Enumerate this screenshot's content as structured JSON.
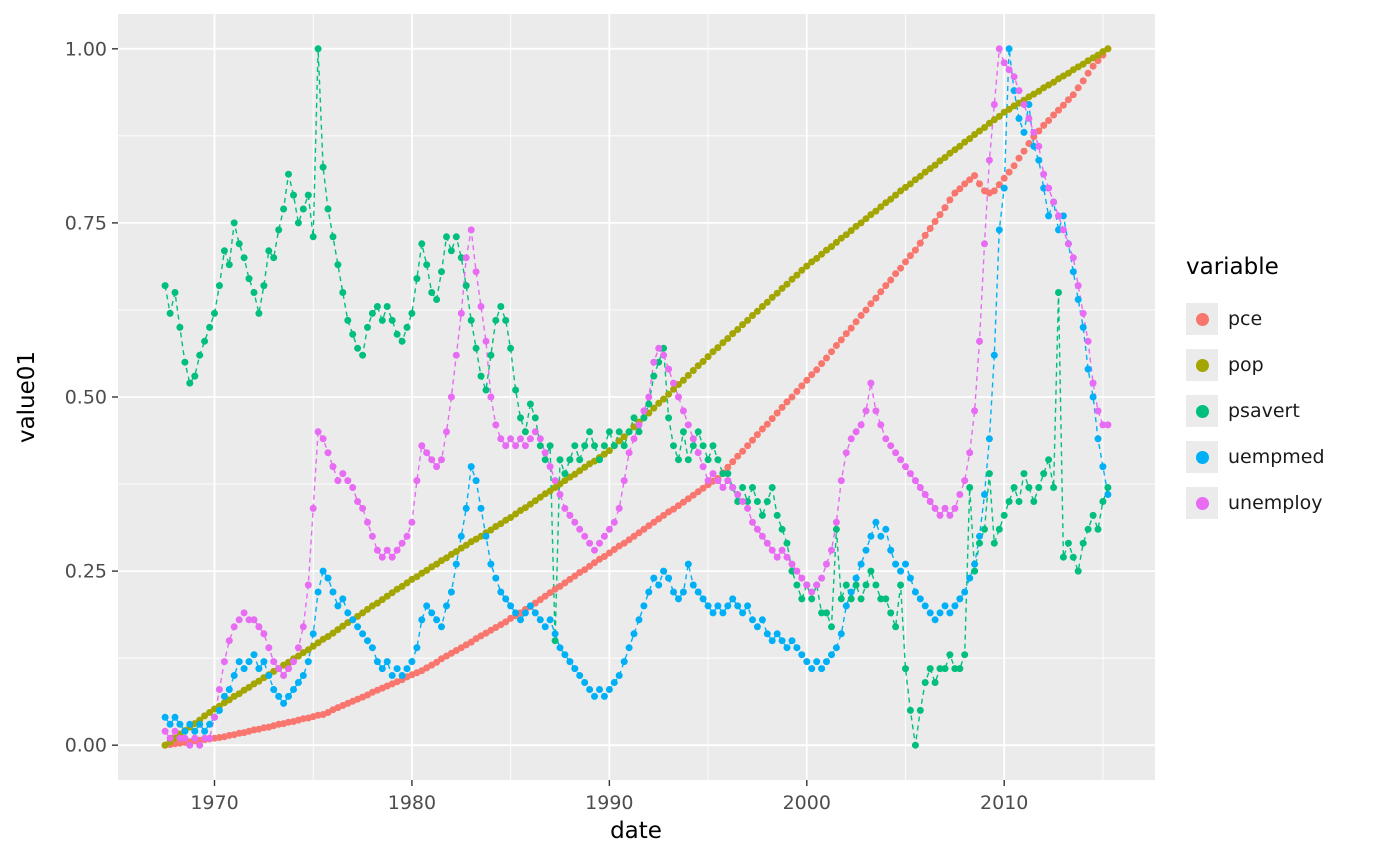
{
  "chart_data": {
    "type": "scatter",
    "title": "",
    "xlabel": "date",
    "ylabel": "value01",
    "x_axis": {
      "ticks": [
        1970,
        1980,
        1990,
        2000,
        2010
      ],
      "tick_labels": [
        "1970",
        "1980",
        "1990",
        "2000",
        "2010"
      ],
      "data_range": [
        1967.5,
        2015.25
      ],
      "expansion": 0.05
    },
    "y_axis": {
      "ticks": [
        0,
        0.25,
        0.5,
        0.75,
        1.0
      ],
      "tick_labels": [
        "0.00",
        "0.25",
        "0.50",
        "0.75",
        "1.00"
      ],
      "range": [
        0,
        1
      ]
    },
    "panel": {
      "background": "#EBEBEB",
      "grid_color": "#FFFFFF"
    },
    "legend": {
      "title": "variable",
      "position": "right",
      "key_fill": "#EBEBEB"
    },
    "x_start": 1967.5,
    "x_step": 0.25,
    "n_points": 192,
    "series": [
      {
        "name": "pce",
        "color": "#F8766D",
        "values": [
          0.0,
          0.001,
          0.002,
          0.003,
          0.004,
          0.005,
          0.006,
          0.007,
          0.008,
          0.009,
          0.01,
          0.011,
          0.012,
          0.014,
          0.015,
          0.017,
          0.018,
          0.02,
          0.022,
          0.023,
          0.025,
          0.026,
          0.028,
          0.03,
          0.031,
          0.033,
          0.034,
          0.036,
          0.038,
          0.039,
          0.041,
          0.043,
          0.044,
          0.047,
          0.051,
          0.054,
          0.057,
          0.06,
          0.063,
          0.066,
          0.069,
          0.072,
          0.076,
          0.079,
          0.082,
          0.085,
          0.088,
          0.091,
          0.094,
          0.098,
          0.101,
          0.104,
          0.107,
          0.111,
          0.115,
          0.119,
          0.124,
          0.128,
          0.132,
          0.136,
          0.14,
          0.144,
          0.148,
          0.153,
          0.157,
          0.161,
          0.165,
          0.169,
          0.173,
          0.177,
          0.182,
          0.186,
          0.19,
          0.195,
          0.199,
          0.204,
          0.209,
          0.214,
          0.219,
          0.224,
          0.228,
          0.233,
          0.238,
          0.243,
          0.248,
          0.252,
          0.257,
          0.262,
          0.267,
          0.271,
          0.276,
          0.281,
          0.286,
          0.29,
          0.295,
          0.3,
          0.305,
          0.31,
          0.315,
          0.32,
          0.325,
          0.33,
          0.335,
          0.339,
          0.344,
          0.349,
          0.354,
          0.359,
          0.364,
          0.369,
          0.374,
          0.379,
          0.383,
          0.391,
          0.399,
          0.407,
          0.415,
          0.422,
          0.43,
          0.438,
          0.446,
          0.454,
          0.461,
          0.469,
          0.477,
          0.485,
          0.493,
          0.5,
          0.508,
          0.516,
          0.524,
          0.532,
          0.539,
          0.548,
          0.556,
          0.565,
          0.574,
          0.582,
          0.591,
          0.599,
          0.608,
          0.617,
          0.625,
          0.634,
          0.642,
          0.651,
          0.66,
          0.668,
          0.677,
          0.685,
          0.694,
          0.703,
          0.711,
          0.721,
          0.732,
          0.742,
          0.752,
          0.762,
          0.772,
          0.783,
          0.793,
          0.799,
          0.806,
          0.812,
          0.818,
          0.806,
          0.796,
          0.793,
          0.796,
          0.805,
          0.814,
          0.823,
          0.832,
          0.843,
          0.853,
          0.864,
          0.874,
          0.882,
          0.89,
          0.897,
          0.905,
          0.912,
          0.919,
          0.927,
          0.934,
          0.944,
          0.954,
          0.965,
          0.975,
          0.983,
          0.991,
          1.0
        ]
      },
      {
        "name": "pop",
        "color": "#A3A500",
        "values": [
          0.0,
          0.005,
          0.01,
          0.016,
          0.021,
          0.026,
          0.031,
          0.036,
          0.042,
          0.047,
          0.052,
          0.056,
          0.061,
          0.065,
          0.07,
          0.074,
          0.079,
          0.083,
          0.088,
          0.092,
          0.097,
          0.101,
          0.106,
          0.11,
          0.115,
          0.119,
          0.124,
          0.128,
          0.133,
          0.137,
          0.142,
          0.147,
          0.152,
          0.156,
          0.161,
          0.166,
          0.171,
          0.176,
          0.18,
          0.185,
          0.19,
          0.195,
          0.2,
          0.204,
          0.209,
          0.214,
          0.219,
          0.224,
          0.228,
          0.233,
          0.238,
          0.242,
          0.247,
          0.251,
          0.256,
          0.26,
          0.265,
          0.269,
          0.274,
          0.278,
          0.283,
          0.287,
          0.292,
          0.296,
          0.3,
          0.305,
          0.309,
          0.314,
          0.318,
          0.323,
          0.327,
          0.332,
          0.337,
          0.341,
          0.346,
          0.351,
          0.356,
          0.361,
          0.365,
          0.37,
          0.375,
          0.38,
          0.385,
          0.389,
          0.394,
          0.399,
          0.404,
          0.408,
          0.413,
          0.418,
          0.423,
          0.43,
          0.437,
          0.443,
          0.45,
          0.457,
          0.464,
          0.47,
          0.477,
          0.484,
          0.491,
          0.497,
          0.504,
          0.511,
          0.518,
          0.524,
          0.531,
          0.538,
          0.545,
          0.551,
          0.558,
          0.565,
          0.571,
          0.578,
          0.584,
          0.591,
          0.597,
          0.604,
          0.61,
          0.617,
          0.623,
          0.63,
          0.636,
          0.643,
          0.649,
          0.656,
          0.662,
          0.669,
          0.675,
          0.682,
          0.688,
          0.694,
          0.699,
          0.705,
          0.711,
          0.716,
          0.722,
          0.728,
          0.733,
          0.739,
          0.745,
          0.75,
          0.756,
          0.762,
          0.767,
          0.773,
          0.779,
          0.784,
          0.79,
          0.796,
          0.801,
          0.806,
          0.812,
          0.817,
          0.823,
          0.828,
          0.833,
          0.839,
          0.844,
          0.85,
          0.855,
          0.86,
          0.866,
          0.871,
          0.877,
          0.882,
          0.887,
          0.893,
          0.898,
          0.903,
          0.909,
          0.913,
          0.918,
          0.922,
          0.926,
          0.931,
          0.935,
          0.939,
          0.944,
          0.948,
          0.952,
          0.957,
          0.961,
          0.965,
          0.97,
          0.974,
          0.978,
          0.983,
          0.987,
          0.991,
          0.996,
          1.0
        ]
      },
      {
        "name": "psavert",
        "color": "#00BF7D",
        "values": [
          0.66,
          0.62,
          0.65,
          0.6,
          0.55,
          0.52,
          0.53,
          0.56,
          0.58,
          0.6,
          0.62,
          0.66,
          0.71,
          0.69,
          0.75,
          0.72,
          0.7,
          0.67,
          0.65,
          0.62,
          0.66,
          0.71,
          0.7,
          0.74,
          0.77,
          0.82,
          0.79,
          0.75,
          0.77,
          0.79,
          0.73,
          1.0,
          0.83,
          0.77,
          0.73,
          0.69,
          0.65,
          0.61,
          0.59,
          0.57,
          0.56,
          0.6,
          0.62,
          0.63,
          0.61,
          0.63,
          0.61,
          0.59,
          0.58,
          0.6,
          0.62,
          0.67,
          0.72,
          0.69,
          0.65,
          0.64,
          0.68,
          0.73,
          0.71,
          0.73,
          0.7,
          0.66,
          0.61,
          0.57,
          0.53,
          0.51,
          0.56,
          0.61,
          0.63,
          0.61,
          0.57,
          0.51,
          0.47,
          0.45,
          0.49,
          0.47,
          0.43,
          0.41,
          0.43,
          0.15,
          0.41,
          0.39,
          0.41,
          0.43,
          0.41,
          0.43,
          0.45,
          0.43,
          0.41,
          0.43,
          0.45,
          0.43,
          0.45,
          0.43,
          0.45,
          0.47,
          0.45,
          0.47,
          0.49,
          0.53,
          0.55,
          0.57,
          0.47,
          0.43,
          0.41,
          0.45,
          0.41,
          0.43,
          0.45,
          0.43,
          0.41,
          0.43,
          0.41,
          0.39,
          0.39,
          0.37,
          0.35,
          0.37,
          0.35,
          0.37,
          0.35,
          0.33,
          0.35,
          0.37,
          0.33,
          0.31,
          0.29,
          0.25,
          0.23,
          0.21,
          0.23,
          0.21,
          0.23,
          0.19,
          0.19,
          0.17,
          0.31,
          0.21,
          0.23,
          0.21,
          0.23,
          0.21,
          0.23,
          0.25,
          0.23,
          0.21,
          0.21,
          0.19,
          0.17,
          0.23,
          0.11,
          0.05,
          0.0,
          0.05,
          0.09,
          0.11,
          0.09,
          0.11,
          0.11,
          0.13,
          0.11,
          0.11,
          0.13,
          0.37,
          0.25,
          0.29,
          0.31,
          0.39,
          0.29,
          0.31,
          0.33,
          0.35,
          0.37,
          0.35,
          0.39,
          0.37,
          0.35,
          0.37,
          0.39,
          0.41,
          0.37,
          0.65,
          0.27,
          0.29,
          0.27,
          0.25,
          0.29,
          0.31,
          0.33,
          0.31,
          0.35,
          0.37
        ]
      },
      {
        "name": "uempmed",
        "color": "#00B0F6",
        "values": [
          0.04,
          0.03,
          0.04,
          0.03,
          0.02,
          0.03,
          0.02,
          0.03,
          0.02,
          0.03,
          0.04,
          0.05,
          0.07,
          0.08,
          0.1,
          0.12,
          0.11,
          0.12,
          0.13,
          0.11,
          0.12,
          0.1,
          0.08,
          0.07,
          0.06,
          0.07,
          0.08,
          0.09,
          0.1,
          0.12,
          0.16,
          0.22,
          0.25,
          0.24,
          0.22,
          0.2,
          0.21,
          0.19,
          0.18,
          0.17,
          0.16,
          0.15,
          0.14,
          0.12,
          0.11,
          0.12,
          0.1,
          0.11,
          0.1,
          0.11,
          0.12,
          0.14,
          0.18,
          0.2,
          0.19,
          0.18,
          0.17,
          0.2,
          0.22,
          0.26,
          0.3,
          0.34,
          0.4,
          0.38,
          0.34,
          0.3,
          0.26,
          0.24,
          0.22,
          0.21,
          0.2,
          0.19,
          0.18,
          0.19,
          0.2,
          0.19,
          0.18,
          0.17,
          0.18,
          0.16,
          0.14,
          0.13,
          0.12,
          0.11,
          0.1,
          0.09,
          0.08,
          0.07,
          0.08,
          0.07,
          0.08,
          0.09,
          0.1,
          0.12,
          0.14,
          0.16,
          0.18,
          0.2,
          0.22,
          0.24,
          0.23,
          0.25,
          0.24,
          0.22,
          0.21,
          0.22,
          0.26,
          0.23,
          0.22,
          0.21,
          0.2,
          0.19,
          0.2,
          0.19,
          0.2,
          0.21,
          0.2,
          0.19,
          0.2,
          0.18,
          0.17,
          0.18,
          0.16,
          0.15,
          0.16,
          0.15,
          0.14,
          0.15,
          0.14,
          0.13,
          0.12,
          0.11,
          0.12,
          0.11,
          0.12,
          0.13,
          0.14,
          0.16,
          0.2,
          0.22,
          0.24,
          0.26,
          0.28,
          0.3,
          0.32,
          0.3,
          0.31,
          0.28,
          0.26,
          0.25,
          0.26,
          0.24,
          0.22,
          0.21,
          0.2,
          0.19,
          0.18,
          0.19,
          0.2,
          0.19,
          0.2,
          0.21,
          0.22,
          0.24,
          0.26,
          0.3,
          0.36,
          0.44,
          0.56,
          0.74,
          0.8,
          1.0,
          0.94,
          0.9,
          0.88,
          0.92,
          0.86,
          0.84,
          0.8,
          0.76,
          0.78,
          0.74,
          0.76,
          0.72,
          0.68,
          0.64,
          0.6,
          0.54,
          0.5,
          0.44,
          0.4,
          0.36
        ]
      },
      {
        "name": "unemploy",
        "color": "#E76BF3",
        "values": [
          0.02,
          0.01,
          0.02,
          0.01,
          0.01,
          0.0,
          0.01,
          0.0,
          0.01,
          0.01,
          0.04,
          0.08,
          0.12,
          0.15,
          0.17,
          0.18,
          0.19,
          0.18,
          0.18,
          0.17,
          0.16,
          0.14,
          0.12,
          0.11,
          0.1,
          0.11,
          0.12,
          0.14,
          0.17,
          0.23,
          0.34,
          0.45,
          0.44,
          0.42,
          0.4,
          0.38,
          0.39,
          0.38,
          0.37,
          0.35,
          0.34,
          0.32,
          0.3,
          0.28,
          0.27,
          0.28,
          0.27,
          0.28,
          0.29,
          0.3,
          0.32,
          0.38,
          0.43,
          0.42,
          0.41,
          0.4,
          0.41,
          0.45,
          0.5,
          0.56,
          0.62,
          0.7,
          0.74,
          0.68,
          0.63,
          0.58,
          0.5,
          0.46,
          0.44,
          0.43,
          0.44,
          0.43,
          0.44,
          0.43,
          0.44,
          0.45,
          0.44,
          0.42,
          0.4,
          0.38,
          0.36,
          0.34,
          0.33,
          0.32,
          0.31,
          0.3,
          0.29,
          0.28,
          0.29,
          0.3,
          0.31,
          0.32,
          0.34,
          0.38,
          0.42,
          0.44,
          0.46,
          0.48,
          0.5,
          0.55,
          0.57,
          0.56,
          0.54,
          0.52,
          0.5,
          0.48,
          0.46,
          0.44,
          0.42,
          0.4,
          0.38,
          0.39,
          0.38,
          0.37,
          0.38,
          0.37,
          0.36,
          0.35,
          0.34,
          0.32,
          0.31,
          0.3,
          0.29,
          0.28,
          0.27,
          0.28,
          0.27,
          0.26,
          0.25,
          0.24,
          0.23,
          0.22,
          0.23,
          0.24,
          0.26,
          0.28,
          0.32,
          0.38,
          0.42,
          0.44,
          0.45,
          0.46,
          0.48,
          0.52,
          0.48,
          0.46,
          0.44,
          0.43,
          0.42,
          0.41,
          0.4,
          0.39,
          0.38,
          0.37,
          0.36,
          0.35,
          0.34,
          0.33,
          0.34,
          0.33,
          0.34,
          0.36,
          0.38,
          0.42,
          0.48,
          0.58,
          0.72,
          0.84,
          0.92,
          1.0,
          0.98,
          0.97,
          0.96,
          0.94,
          0.92,
          0.9,
          0.88,
          0.86,
          0.82,
          0.8,
          0.78,
          0.76,
          0.74,
          0.72,
          0.7,
          0.66,
          0.62,
          0.58,
          0.52,
          0.48,
          0.46,
          0.46
        ]
      }
    ]
  }
}
